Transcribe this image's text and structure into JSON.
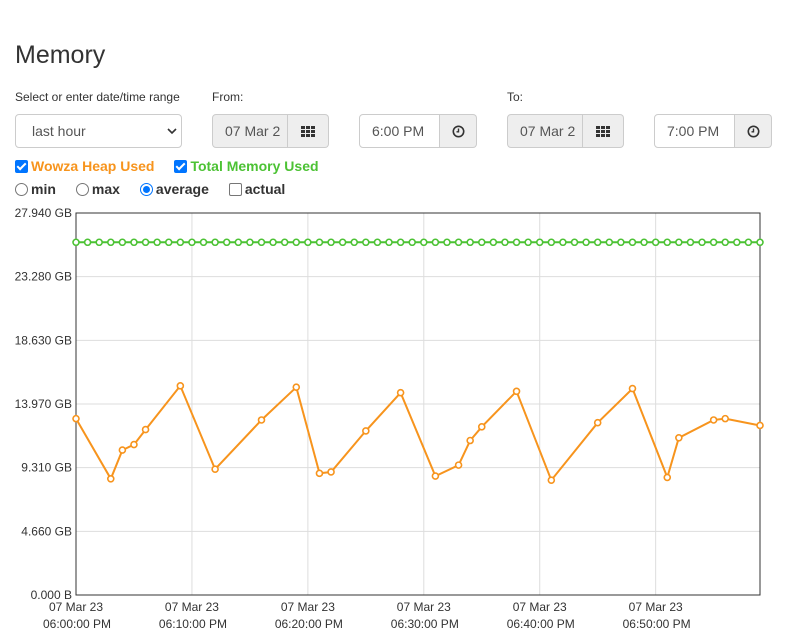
{
  "page": {
    "title": "Memory"
  },
  "range": {
    "label": "Select or enter date/time range",
    "selected": "last hour"
  },
  "from": {
    "label": "From:",
    "date": "07 Mar 2",
    "time": "6:00 PM"
  },
  "to": {
    "label": "To:",
    "date": "07 Mar 2",
    "time": "7:00 PM"
  },
  "series_toggles": [
    {
      "label": "Wowza Heap Used",
      "checked": true,
      "color": "#f7941d"
    },
    {
      "label": "Total Memory Used",
      "checked": true,
      "color": "#4cc234"
    }
  ],
  "stat_modes": [
    {
      "label": "min",
      "type": "radio",
      "checked": false
    },
    {
      "label": "max",
      "type": "radio",
      "checked": false
    },
    {
      "label": "average",
      "type": "radio",
      "checked": true
    },
    {
      "label": "actual",
      "type": "checkbox",
      "checked": false
    }
  ],
  "icons": {
    "calendar": "calendar-grid-icon",
    "clock": "clock-icon"
  },
  "chart_data": {
    "type": "line",
    "title": "",
    "xlabel": "",
    "ylabel": "",
    "ylim": [
      0,
      27.94
    ],
    "y_unit": "GB",
    "grid": true,
    "legend": "none",
    "y_ticks": [
      "0.000 B",
      "4.660 GB",
      "9.310 GB",
      "13.970 GB",
      "18.630 GB",
      "23.280 GB",
      "27.940 GB"
    ],
    "x_ticks": [
      {
        "date": "07 Mar 23",
        "time": "06:00:00 PM"
      },
      {
        "date": "07 Mar 23",
        "time": "06:10:00 PM"
      },
      {
        "date": "07 Mar 23",
        "time": "06:20:00 PM"
      },
      {
        "date": "07 Mar 23",
        "time": "06:30:00 PM"
      },
      {
        "date": "07 Mar 23",
        "time": "06:40:00 PM"
      },
      {
        "date": "07 Mar 23",
        "time": "06:50:00 PM"
      }
    ],
    "x_range_minutes": [
      0,
      59
    ],
    "series": [
      {
        "name": "Total Memory Used",
        "color": "#4cc234",
        "x": [
          0,
          1,
          2,
          3,
          4,
          5,
          6,
          7,
          8,
          9,
          10,
          11,
          12,
          13,
          14,
          15,
          16,
          17,
          18,
          19,
          20,
          21,
          22,
          23,
          24,
          25,
          26,
          27,
          28,
          29,
          30,
          31,
          32,
          33,
          34,
          35,
          36,
          37,
          38,
          39,
          40,
          41,
          42,
          43,
          44,
          45,
          46,
          47,
          48,
          49,
          50,
          51,
          52,
          53,
          54,
          55,
          56,
          57,
          58,
          59
        ],
        "values": [
          25.8,
          25.8,
          25.8,
          25.8,
          25.8,
          25.8,
          25.8,
          25.8,
          25.8,
          25.8,
          25.8,
          25.8,
          25.8,
          25.8,
          25.8,
          25.8,
          25.8,
          25.8,
          25.8,
          25.8,
          25.8,
          25.8,
          25.8,
          25.8,
          25.8,
          25.8,
          25.8,
          25.8,
          25.8,
          25.8,
          25.8,
          25.8,
          25.8,
          25.8,
          25.8,
          25.8,
          25.8,
          25.8,
          25.8,
          25.8,
          25.8,
          25.8,
          25.8,
          25.8,
          25.8,
          25.8,
          25.8,
          25.8,
          25.8,
          25.8,
          25.8,
          25.8,
          25.8,
          25.8,
          25.8,
          25.8,
          25.8,
          25.8,
          25.8,
          25.8
        ]
      },
      {
        "name": "Wowza Heap Used",
        "color": "#f7941d",
        "x": [
          0,
          3,
          4,
          5,
          6,
          9,
          12,
          16,
          19,
          21,
          22,
          25,
          28,
          31,
          33,
          34,
          35,
          38,
          41,
          45,
          48,
          51,
          52,
          55,
          56,
          59
        ],
        "values": [
          12.9,
          8.5,
          10.6,
          11.0,
          12.1,
          15.3,
          9.2,
          12.8,
          15.2,
          8.9,
          9.0,
          12.0,
          14.8,
          8.7,
          9.5,
          11.3,
          12.3,
          14.9,
          8.4,
          12.6,
          15.1,
          8.6,
          11.5,
          12.8,
          12.9,
          12.4
        ]
      }
    ]
  }
}
